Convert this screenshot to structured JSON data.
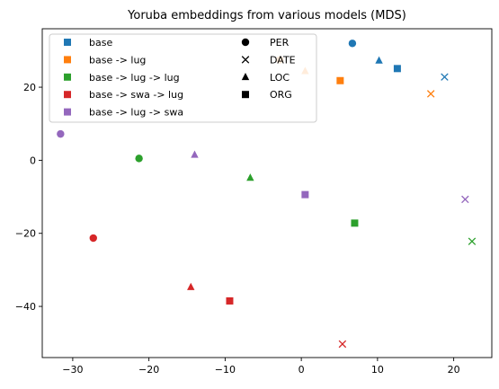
{
  "chart_data": {
    "type": "scatter",
    "title": "Yoruba embeddings from various models (MDS)",
    "xlabel": "",
    "ylabel": "",
    "xlim": [
      -34,
      25
    ],
    "ylim": [
      -54,
      36
    ],
    "xticks": [
      -30,
      -20,
      -10,
      0,
      10,
      20
    ],
    "yticks": [
      -40,
      -20,
      0,
      20
    ],
    "xtick_labels": [
      "−30",
      "−20",
      "−10",
      "0",
      "10",
      "20"
    ],
    "ytick_labels": [
      "−40",
      "−20",
      "0",
      "20"
    ],
    "grid": false,
    "legend_placement": "upper-left, two columns",
    "series": [
      {
        "name": "base",
        "color": "#1f77b4",
        "points": [
          {
            "marker": "PER",
            "x": 6.7,
            "y": 32.0
          },
          {
            "marker": "DATE",
            "x": 18.8,
            "y": 22.8
          },
          {
            "marker": "LOC",
            "x": 10.2,
            "y": 27.3
          },
          {
            "marker": "ORG",
            "x": 12.6,
            "y": 25.1
          }
        ]
      },
      {
        "name": "base -> lug",
        "color": "#ff7f0e",
        "points": [
          {
            "marker": "PER",
            "x": -2.8,
            "y": 27.5
          },
          {
            "marker": "DATE",
            "x": 17.0,
            "y": 18.2
          },
          {
            "marker": "LOC",
            "x": 0.5,
            "y": 24.4
          },
          {
            "marker": "ORG",
            "x": 5.1,
            "y": 21.8
          }
        ]
      },
      {
        "name": "base -> lug -> lug",
        "color": "#2ca02c",
        "points": [
          {
            "marker": "PER",
            "x": -21.3,
            "y": 0.5
          },
          {
            "marker": "DATE",
            "x": 22.4,
            "y": -22.2
          },
          {
            "marker": "LOC",
            "x": -6.7,
            "y": -4.8
          },
          {
            "marker": "ORG",
            "x": 7.0,
            "y": -17.2
          }
        ]
      },
      {
        "name": "base -> swa -> lug",
        "color": "#d62728",
        "points": [
          {
            "marker": "PER",
            "x": -27.3,
            "y": -21.3
          },
          {
            "marker": "DATE",
            "x": 5.4,
            "y": -50.3
          },
          {
            "marker": "LOC",
            "x": -14.5,
            "y": -34.7
          },
          {
            "marker": "ORG",
            "x": -9.4,
            "y": -38.5
          }
        ]
      },
      {
        "name": "base -> lug -> swa",
        "color": "#9467bd",
        "points": [
          {
            "marker": "PER",
            "x": -31.6,
            "y": 7.2
          },
          {
            "marker": "DATE",
            "x": 21.5,
            "y": -10.7
          },
          {
            "marker": "LOC",
            "x": -14.0,
            "y": 1.5
          },
          {
            "marker": "ORG",
            "x": 0.5,
            "y": -9.4
          }
        ]
      }
    ],
    "marker_legend": [
      {
        "label": "PER",
        "marker": "PER"
      },
      {
        "label": "DATE",
        "marker": "DATE"
      },
      {
        "label": "LOC",
        "marker": "LOC"
      },
      {
        "label": "ORG",
        "marker": "ORG"
      }
    ]
  }
}
